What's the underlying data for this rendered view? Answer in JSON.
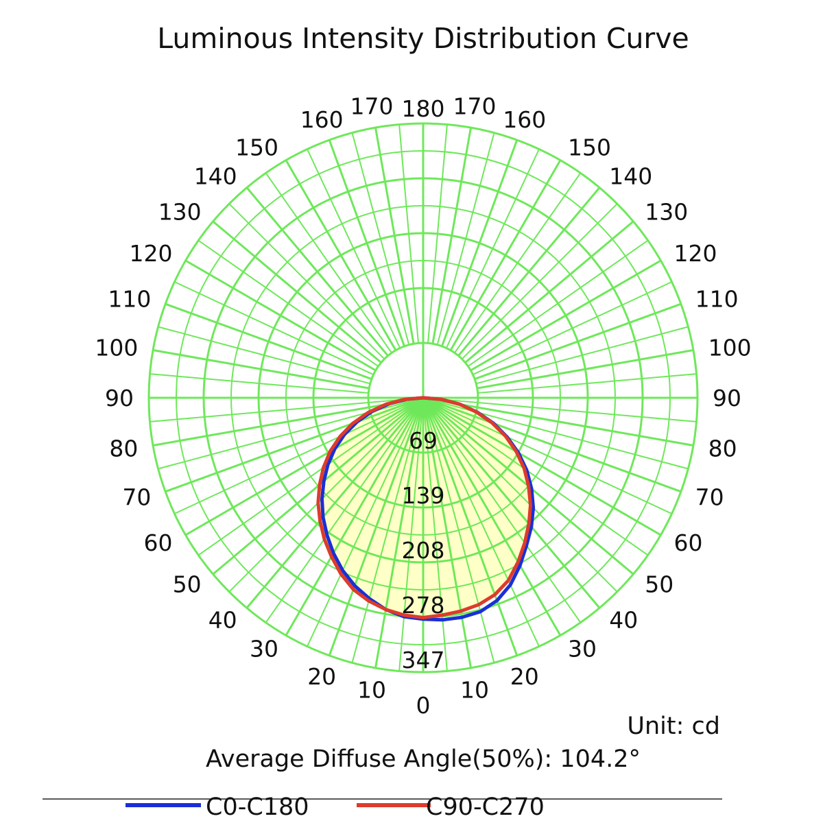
{
  "chart_data": {
    "type": "polar",
    "title": "Luminous Intensity Distribution Curve",
    "unit_label": "Unit: cd",
    "diffuse_angle_label": "Average Diffuse Angle(50%): 104.2°",
    "angle_step_deg": 10,
    "angle_range_deg": [
      0,
      180
    ],
    "ring_values": [
      69,
      139,
      208,
      278,
      347
    ],
    "r_max": 347,
    "grid": true,
    "colors": {
      "grid": "#6ee85a",
      "fill": "#ffffc8",
      "c0": "#1a2fd6",
      "c90": "#dd3b2c"
    },
    "series": [
      {
        "name": "C0-C180",
        "color": "#1a2fd6",
        "angles_deg": [
          0,
          5,
          10,
          15,
          20,
          25,
          30,
          35,
          40,
          45,
          50,
          55,
          60,
          65,
          70,
          75,
          80,
          85,
          90
        ],
        "left_cd": [
          280,
          278,
          272,
          263,
          253,
          241,
          227,
          212,
          197,
          181,
          164,
          147,
          129,
          110,
          89,
          67,
          44,
          21,
          0
        ],
        "right_cd": [
          280,
          282,
          282,
          280,
          273,
          261,
          245,
          228,
          213,
          197,
          179,
          160,
          139,
          117,
          95,
          71,
          47,
          23,
          0
        ]
      },
      {
        "name": "C90-C270",
        "color": "#dd3b2c",
        "angles_deg": [
          0,
          5,
          10,
          15,
          20,
          25,
          30,
          35,
          40,
          45,
          50,
          55,
          60,
          65,
          70,
          75,
          80,
          85,
          90
        ],
        "left_cd": [
          278,
          276,
          272,
          266,
          258,
          246,
          232,
          218,
          203,
          188,
          171,
          154,
          136,
          116,
          95,
          72,
          48,
          24,
          0
        ],
        "right_cd": [
          278,
          276,
          274,
          271,
          265,
          255,
          240,
          224,
          208,
          192,
          174,
          156,
          136,
          115,
          93,
          70,
          47,
          23,
          0
        ]
      }
    ]
  }
}
